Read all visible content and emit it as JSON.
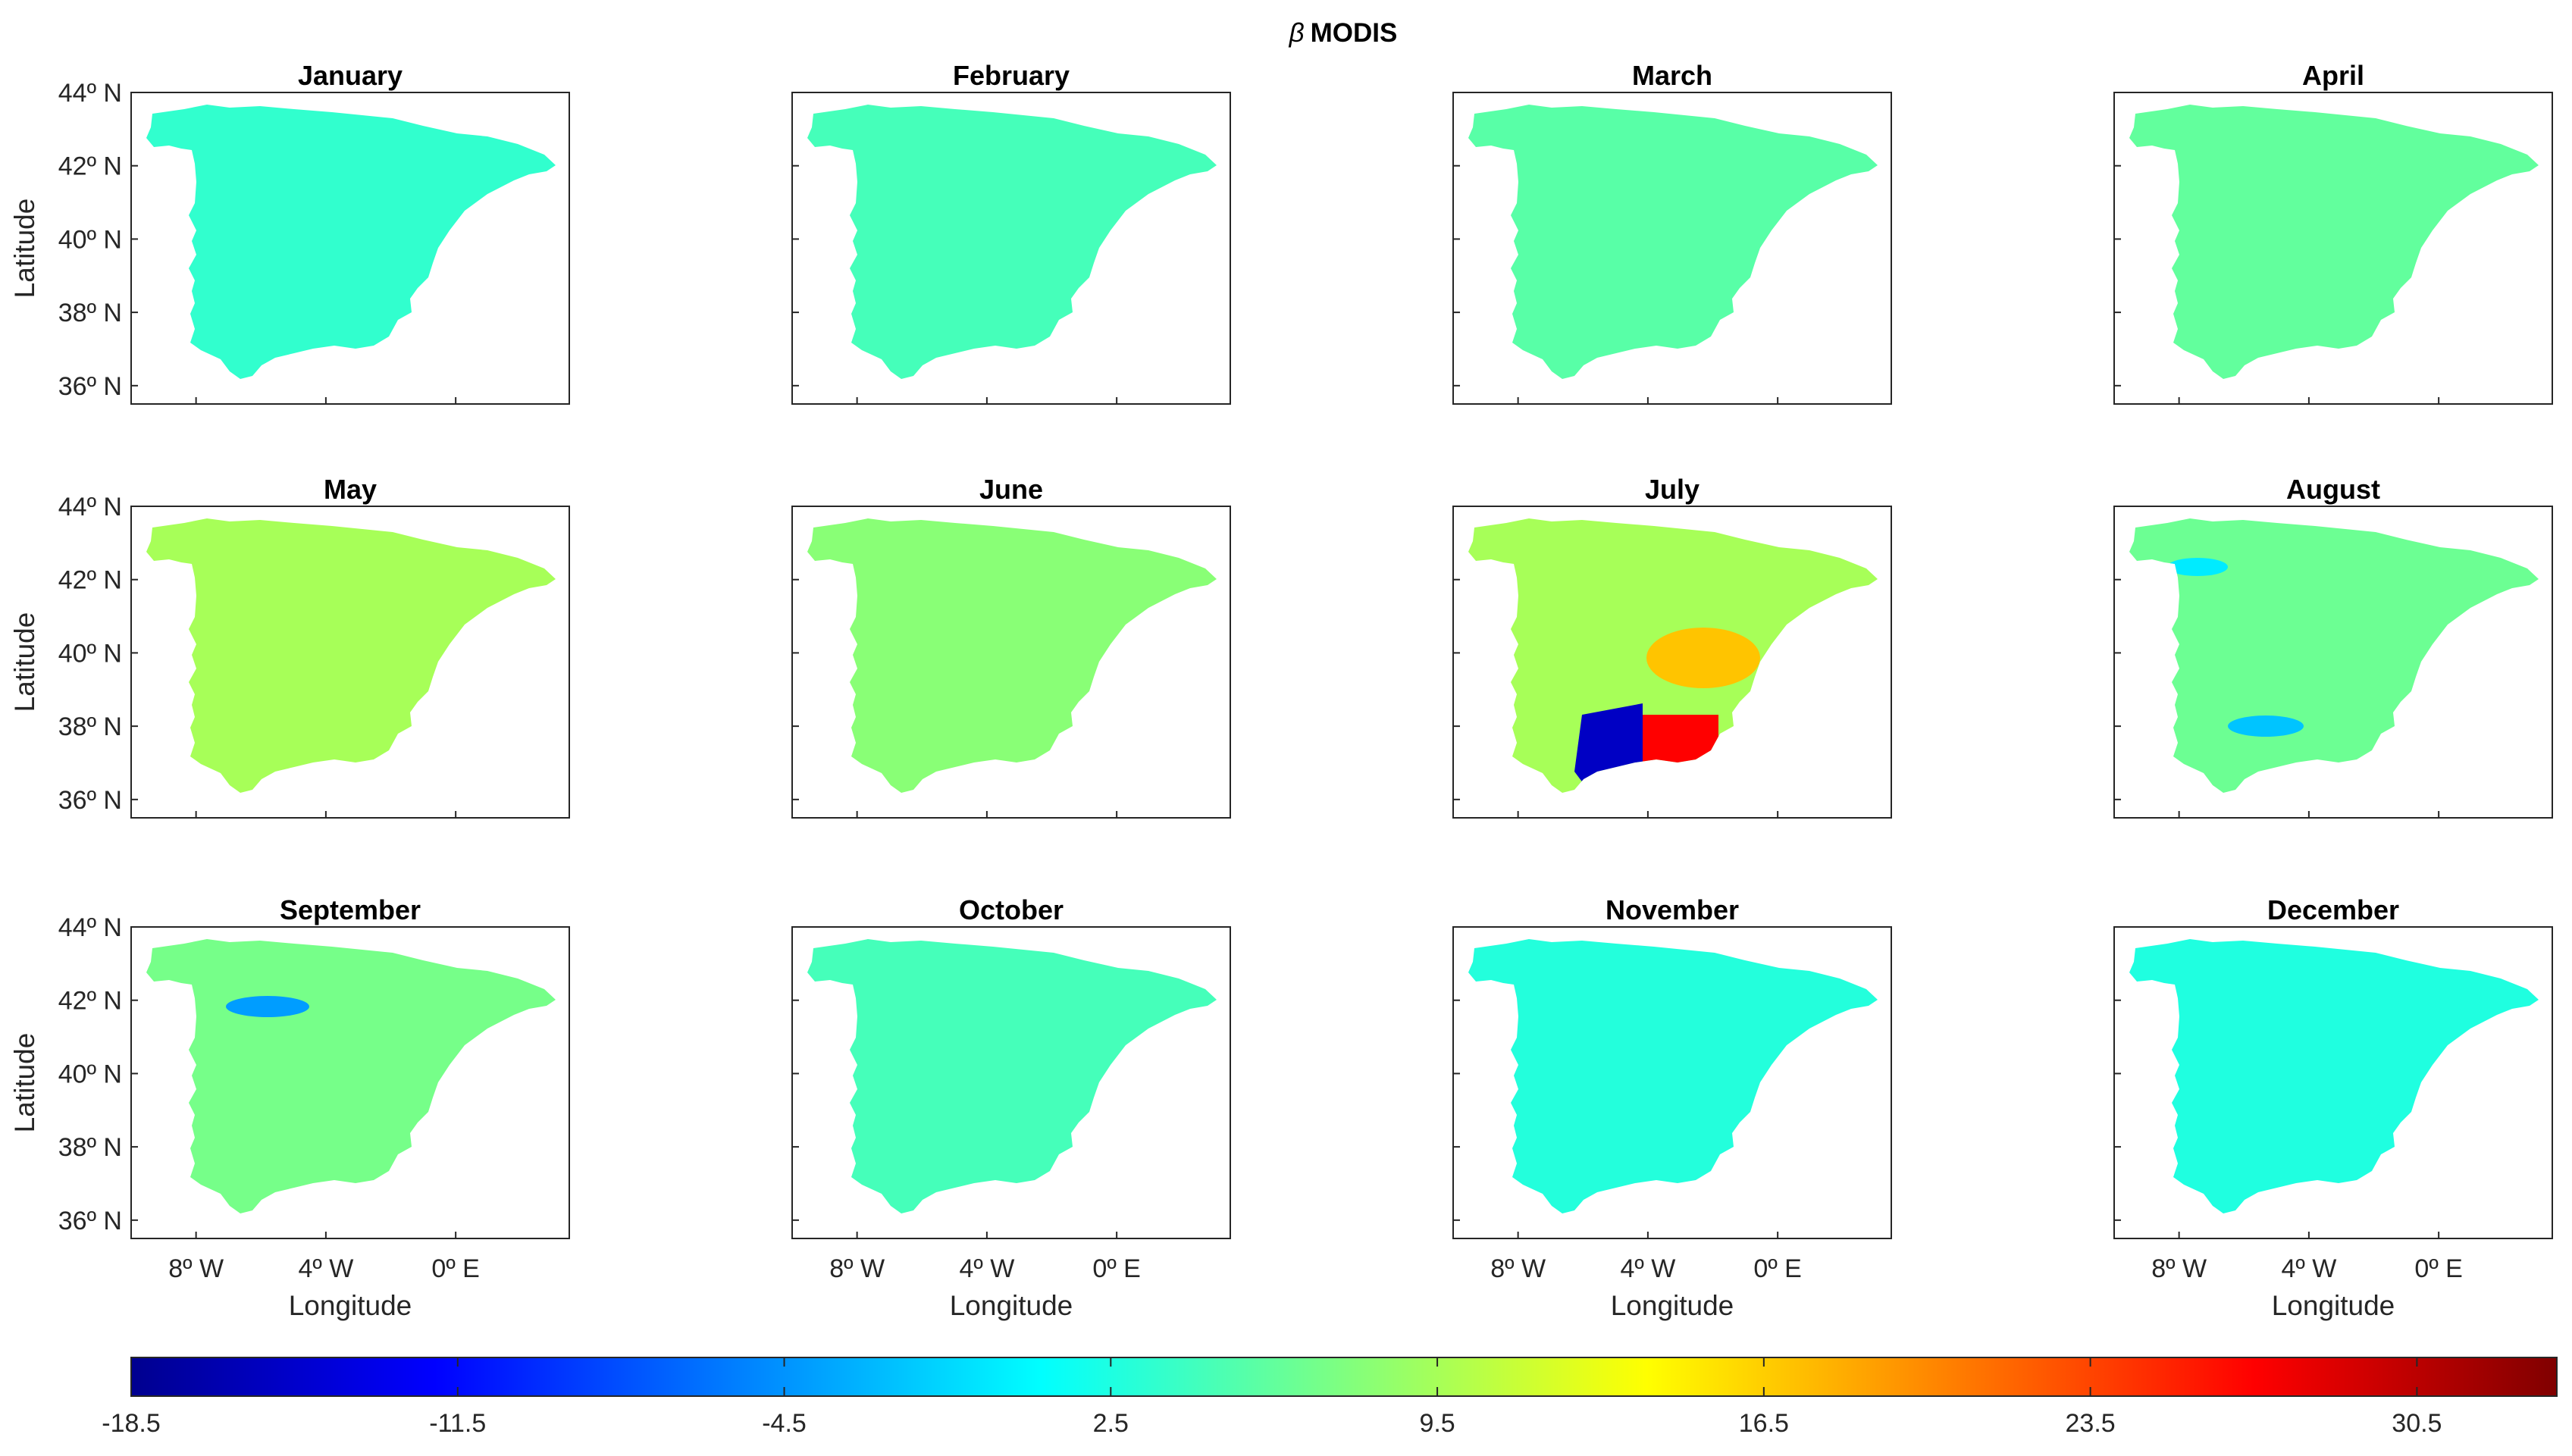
{
  "chart_data": {
    "type": "heatmap",
    "title_symbol": "β",
    "title": "MODIS",
    "xlabel": "Longitude",
    "ylabel": "Latitude",
    "xlim": [
      -10,
      3.5
    ],
    "ylim": [
      35.5,
      44
    ],
    "xticks": [
      -8,
      -4,
      0
    ],
    "xtick_labels": [
      "8º W",
      "4º W",
      "0º E"
    ],
    "yticks": [
      36,
      38,
      40,
      42,
      44
    ],
    "ytick_labels": [
      "36º N",
      "38º N",
      "40º N",
      "42º N",
      "44º N"
    ],
    "colormap": "jet",
    "colorbar": {
      "range": [
        -18.5,
        33.5
      ],
      "ticks": [
        -18.5,
        -11.5,
        -4.5,
        2.5,
        9.5,
        16.5,
        23.5,
        30.5
      ],
      "tick_labels": [
        "-18.5",
        "-11.5",
        "-4.5",
        "2.5",
        "9.5",
        "16.5",
        "23.5",
        "30.5"
      ]
    },
    "panels": [
      {
        "title": "January",
        "mean_value": 3.5
      },
      {
        "title": "February",
        "mean_value": 4.5
      },
      {
        "title": "March",
        "mean_value": 5.5
      },
      {
        "title": "April",
        "mean_value": 6.0
      },
      {
        "title": "May",
        "mean_value": 9.5
      },
      {
        "title": "June",
        "mean_value": 8.0
      },
      {
        "title": "July",
        "mean_value": 9.5,
        "hotspot_max": 27,
        "coldspot_min": -15
      },
      {
        "title": "August",
        "mean_value": 6.5,
        "coldspot_min": -2
      },
      {
        "title": "September",
        "mean_value": 7.0,
        "coldspot_min": -4
      },
      {
        "title": "October",
        "mean_value": 4.5
      },
      {
        "title": "November",
        "mean_value": 2.8
      },
      {
        "title": "December",
        "mean_value": 2.6
      }
    ]
  }
}
